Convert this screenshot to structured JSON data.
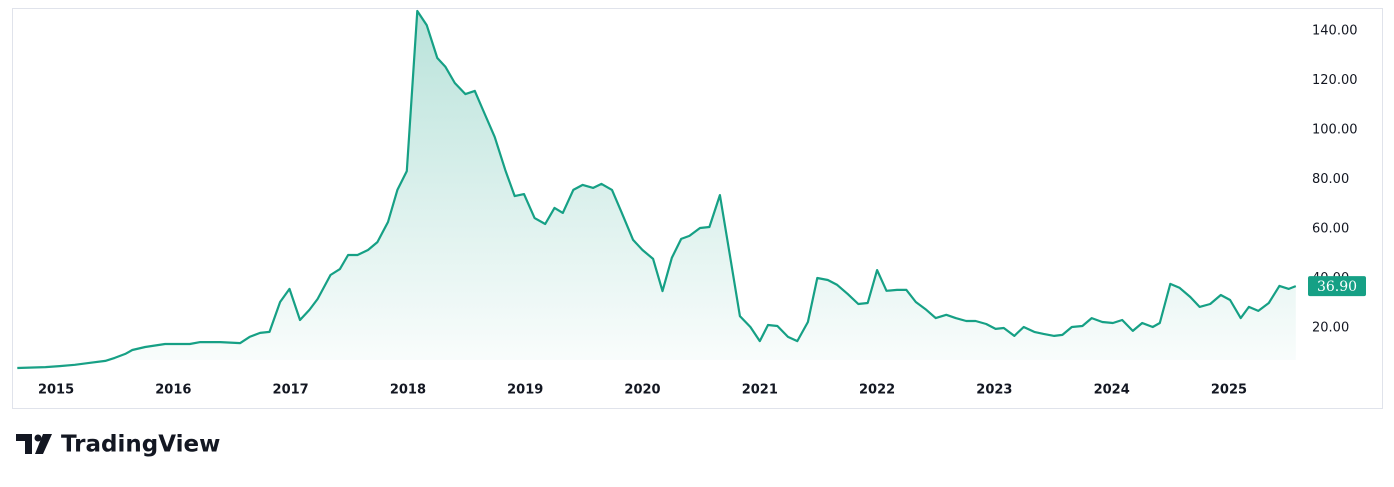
{
  "chart_data": {
    "type": "line",
    "series": [
      {
        "color": "#16a085",
        "x": [
          2014.67,
          2014.91,
          2015.03,
          2015.16,
          2015.29,
          2015.42,
          2015.5,
          2015.59,
          2015.65,
          2015.76,
          2015.93,
          2016.14,
          2016.23,
          2016.4,
          2016.57,
          2016.65,
          2016.74,
          2016.82,
          2016.91,
          2016.99,
          2017.08,
          2017.16,
          2017.23,
          2017.34,
          2017.42,
          2017.49,
          2017.57,
          2017.66,
          2017.74,
          2017.83,
          2017.91,
          2017.99,
          2018.08,
          2018.16,
          2018.25,
          2018.32,
          2018.4,
          2018.49,
          2018.57,
          2018.64,
          2018.74,
          2018.83,
          2018.91,
          2018.99,
          2019.08,
          2019.17,
          2019.25,
          2019.32,
          2019.41,
          2019.49,
          2019.58,
          2019.65,
          2019.74,
          2019.82,
          2019.92,
          2020.0,
          2020.09,
          2020.17,
          2020.25,
          2020.33,
          2020.4,
          2020.49,
          2020.57,
          2020.66,
          2020.75,
          2020.83,
          2020.92,
          2021.0,
          2021.07,
          2021.15,
          2021.24,
          2021.32,
          2021.41,
          2021.49,
          2021.58,
          2021.66,
          2021.75,
          2021.84,
          2021.92,
          2022.0,
          2022.08,
          2022.17,
          2022.25,
          2022.33,
          2022.42,
          2022.5,
          2022.59,
          2022.67,
          2022.76,
          2022.84,
          2022.93,
          2023.01,
          2023.08,
          2023.17,
          2023.25,
          2023.34,
          2023.42,
          2023.51,
          2023.58,
          2023.66,
          2023.75,
          2023.83,
          2023.92,
          2024.01,
          2024.09,
          2024.18,
          2024.26,
          2024.35,
          2024.41,
          2024.5,
          2024.58,
          2024.67,
          2024.75,
          2024.84,
          2024.93,
          2025.01,
          2025.1,
          2025.17,
          2025.25,
          2025.34,
          2025.43,
          2025.51,
          2025.57
        ],
        "values": [
          3.8,
          4.2,
          4.6,
          5.1,
          5.9,
          6.7,
          7.9,
          9.5,
          11.1,
          12.3,
          13.5,
          13.5,
          14.3,
          14.3,
          13.9,
          16.4,
          18.0,
          18.4,
          30.5,
          35.8,
          23.2,
          27.3,
          31.7,
          41.4,
          43.8,
          49.5,
          49.5,
          51.5,
          54.7,
          62.8,
          75.8,
          83.4,
          148.1,
          142.4,
          129.1,
          125.5,
          119.0,
          114.5,
          115.8,
          108.1,
          97.2,
          83.8,
          73.3,
          74.1,
          64.4,
          62.0,
          68.5,
          66.5,
          75.8,
          77.8,
          76.6,
          78.2,
          75.8,
          66.9,
          55.6,
          51.5,
          47.9,
          34.9,
          48.3,
          56.0,
          57.2,
          60.4,
          60.8,
          73.7,
          47.9,
          24.8,
          20.4,
          14.7,
          21.2,
          20.8,
          16.4,
          14.7,
          22.4,
          40.2,
          39.4,
          37.4,
          33.7,
          29.7,
          30.1,
          43.4,
          35.0,
          35.4,
          35.4,
          30.5,
          27.3,
          24.0,
          25.3,
          24.0,
          22.8,
          22.8,
          21.6,
          19.6,
          20.0,
          16.8,
          20.4,
          18.4,
          17.6,
          16.8,
          17.2,
          20.4,
          20.8,
          24.0,
          22.4,
          22.0,
          23.2,
          18.8,
          22.0,
          20.4,
          22.0,
          37.8,
          36.2,
          32.5,
          28.5,
          29.7,
          33.3,
          31.3,
          24.0,
          28.5,
          26.9,
          30.1,
          37.0,
          35.8,
          36.9
        ]
      }
    ],
    "last_price": {
      "value": 36.9,
      "label": "36.90"
    },
    "xlim": [
      2014.65,
      2025.58
    ],
    "xticks": [
      2015,
      2016,
      2017,
      2018,
      2019,
      2020,
      2021,
      2022,
      2023,
      2024,
      2025
    ],
    "ylim": [
      2,
      149.3
    ],
    "yticks": [
      {
        "value": 20,
        "label": "20.00"
      },
      {
        "value": 40,
        "label": "40.00"
      },
      {
        "value": 60,
        "label": "60.00"
      },
      {
        "value": 80,
        "label": "80.00"
      },
      {
        "value": 100,
        "label": "100.00"
      },
      {
        "value": 120,
        "label": "120.00"
      },
      {
        "value": 140,
        "label": "140.00"
      }
    ]
  },
  "branding": "TradingView"
}
